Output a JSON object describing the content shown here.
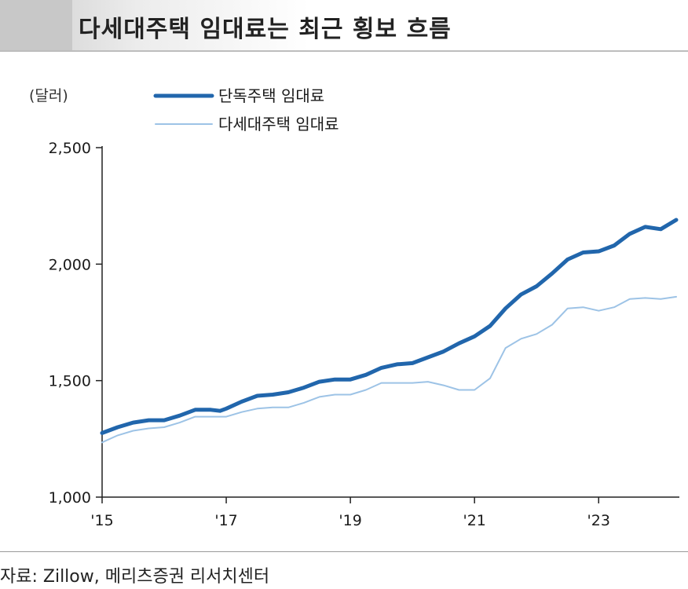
{
  "title": "다세대주택 임대료는 최근 횡보 흐름",
  "source": "자료: Zillow, 메리츠증권 리서치센터",
  "chart_data": {
    "type": "line",
    "unit_label": "(달러)",
    "x_tick_labels": [
      "'15",
      "'17",
      "'19",
      "'21",
      "'23"
    ],
    "x_ticks": [
      2015,
      2017,
      2019,
      2021,
      2023
    ],
    "xlim": [
      2015,
      2024.3
    ],
    "ylim": [
      1000,
      2500
    ],
    "y_ticks": [
      1000,
      1500,
      2000,
      2500
    ],
    "y_tick_labels": [
      "1,000",
      "1,500",
      "2,000",
      "2,500"
    ],
    "grid": false,
    "legend_position": "top-left",
    "series": [
      {
        "name": "단독주택 임대료",
        "color": "#2166ac",
        "style": "thick",
        "x": [
          2015.0,
          2015.25,
          2015.5,
          2015.75,
          2016.0,
          2016.25,
          2016.5,
          2016.75,
          2016.9,
          2017.0,
          2017.25,
          2017.5,
          2017.75,
          2018.0,
          2018.25,
          2018.5,
          2018.75,
          2019.0,
          2019.25,
          2019.5,
          2019.75,
          2020.0,
          2020.25,
          2020.5,
          2020.75,
          2021.0,
          2021.25,
          2021.5,
          2021.75,
          2022.0,
          2022.25,
          2022.5,
          2022.75,
          2023.0,
          2023.25,
          2023.5,
          2023.75,
          2024.0,
          2024.25
        ],
        "y": [
          1275,
          1300,
          1320,
          1330,
          1330,
          1350,
          1375,
          1375,
          1370,
          1380,
          1410,
          1435,
          1440,
          1450,
          1470,
          1495,
          1505,
          1505,
          1525,
          1555,
          1570,
          1575,
          1600,
          1625,
          1660,
          1690,
          1735,
          1810,
          1870,
          1905,
          1960,
          2020,
          2050,
          2055,
          2080,
          2130,
          2160,
          2150,
          2190
        ]
      },
      {
        "name": "다세대주택 임대료",
        "color": "#9dc3e6",
        "style": "thin",
        "x": [
          2015.0,
          2015.25,
          2015.5,
          2015.75,
          2016.0,
          2016.25,
          2016.5,
          2016.75,
          2017.0,
          2017.25,
          2017.5,
          2017.75,
          2018.0,
          2018.25,
          2018.5,
          2018.75,
          2019.0,
          2019.25,
          2019.5,
          2019.75,
          2020.0,
          2020.25,
          2020.5,
          2020.75,
          2021.0,
          2021.25,
          2021.5,
          2021.75,
          2022.0,
          2022.25,
          2022.5,
          2022.75,
          2023.0,
          2023.25,
          2023.5,
          2023.75,
          2024.0,
          2024.25
        ],
        "y": [
          1235,
          1265,
          1285,
          1295,
          1300,
          1320,
          1345,
          1345,
          1345,
          1365,
          1380,
          1385,
          1385,
          1405,
          1430,
          1440,
          1440,
          1460,
          1490,
          1490,
          1490,
          1495,
          1480,
          1460,
          1460,
          1510,
          1640,
          1680,
          1700,
          1740,
          1810,
          1815,
          1800,
          1815,
          1850,
          1855,
          1850,
          1860
        ]
      }
    ]
  }
}
